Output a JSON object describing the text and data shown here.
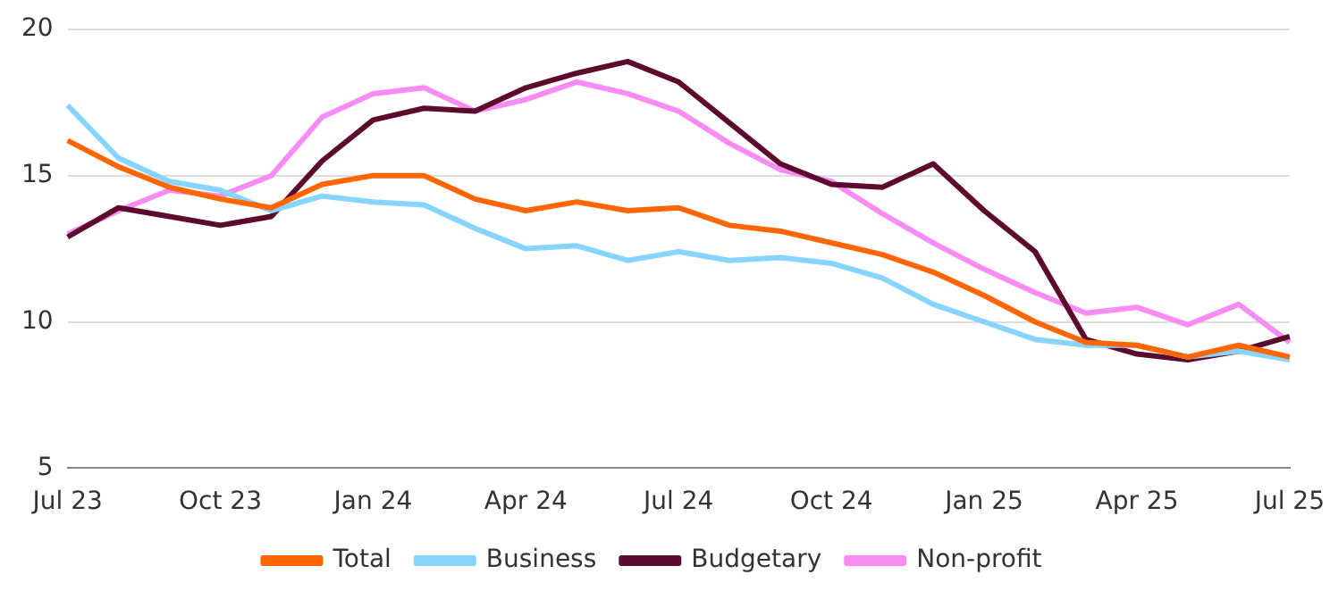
{
  "chart_data": {
    "type": "line",
    "categories": [
      "Jul 23",
      null,
      null,
      "Oct 23",
      null,
      null,
      "Jan 24",
      null,
      null,
      "Apr 24",
      null,
      null,
      "Jul 24",
      null,
      null,
      "Oct 24",
      null,
      null,
      "Jan 25",
      null,
      null,
      "Apr 25",
      null,
      null,
      "Jul 25"
    ],
    "series": [
      {
        "name": "Total",
        "color": "#ff6600",
        "values": [
          16.2,
          15.3,
          14.6,
          14.2,
          13.9,
          14.7,
          15.0,
          15.0,
          14.2,
          13.8,
          14.1,
          13.8,
          13.9,
          13.3,
          13.1,
          12.7,
          12.3,
          11.7,
          10.9,
          10.0,
          9.3,
          9.2,
          8.8,
          9.2,
          8.8
        ]
      },
      {
        "name": "Business",
        "color": "#87d4ff",
        "values": [
          17.4,
          15.6,
          14.8,
          14.5,
          13.8,
          14.3,
          14.1,
          14.0,
          13.2,
          12.5,
          12.6,
          12.1,
          12.4,
          12.1,
          12.2,
          12.0,
          11.5,
          10.6,
          10.0,
          9.4,
          9.2,
          9.2,
          8.8,
          9.0,
          8.7
        ]
      },
      {
        "name": "Budgetary",
        "color": "#5c0a2e",
        "values": [
          12.9,
          13.9,
          13.6,
          13.3,
          13.6,
          15.5,
          16.9,
          17.3,
          17.2,
          18.0,
          18.5,
          18.9,
          18.2,
          16.8,
          15.4,
          14.7,
          14.6,
          15.4,
          13.8,
          12.4,
          9.4,
          8.9,
          8.7,
          9.0,
          9.5
        ]
      },
      {
        "name": "Non-profit",
        "color": "#f78cf5",
        "values": [
          13.0,
          13.8,
          14.5,
          14.3,
          15.0,
          17.0,
          17.8,
          18.0,
          17.2,
          17.6,
          18.2,
          17.8,
          17.2,
          16.1,
          15.2,
          14.8,
          13.7,
          12.7,
          11.8,
          11.0,
          10.3,
          10.5,
          9.9,
          10.6,
          9.3
        ]
      }
    ],
    "ylim": [
      5,
      20
    ],
    "yticks": [
      5,
      10,
      15,
      20
    ],
    "grid": "y",
    "legend": "bottom",
    "marker": "none",
    "line_style": "solid"
  }
}
